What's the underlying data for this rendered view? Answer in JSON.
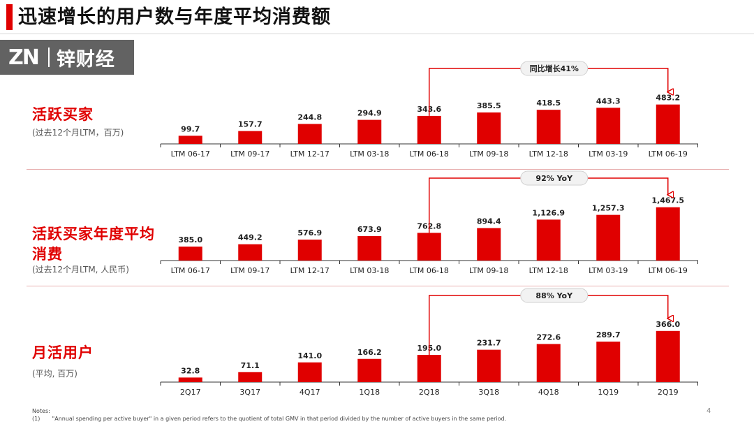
{
  "slide": {
    "title": "迅速增长的用户数与年度平均消费额",
    "watermark_logo": "ZN",
    "watermark_text": "锌财经",
    "page_number": "4",
    "notes_label": "Notes:",
    "footnote_number": "(1)",
    "footnote_text": "\"Annual spending per active buyer\" in a given period refers to the quotient of total GMV in that period divided by the number of active buyers in the same period."
  },
  "colors": {
    "bar": "#e00000",
    "accent": "#e00000",
    "axis": "#333333"
  },
  "sections": [
    {
      "title_lines": [
        "活跃买家"
      ],
      "subtitle": "(过去12个月LTM，百万)"
    },
    {
      "title_lines": [
        "活跃买家年度平均",
        "消费"
      ],
      "subtitle": "(过去12个月LTM, 人民币)"
    },
    {
      "title_lines": [
        "月活用户"
      ],
      "subtitle": "(平均, 百万)"
    }
  ],
  "chart_data": [
    {
      "type": "bar",
      "categories": [
        "LTM 06-17",
        "LTM 09-17",
        "LTM 12-17",
        "LTM 03-18",
        "LTM 06-18",
        "LTM 09-18",
        "LTM 12-18",
        "LTM 03-19",
        "LTM 06-19"
      ],
      "values": [
        99.7,
        157.7,
        244.8,
        294.9,
        343.6,
        385.5,
        418.5,
        443.3,
        483.2
      ],
      "value_labels": [
        "99.7",
        "157.7",
        "244.8",
        "294.9",
        "343.6",
        "385.5",
        "418.5",
        "443.3",
        "483.2"
      ],
      "ylim": [
        0,
        600
      ],
      "annotation": {
        "text": "同比增长41%",
        "from_category": "LTM 06-18",
        "to_category": "LTM 06-19"
      }
    },
    {
      "type": "bar",
      "categories": [
        "LTM 06-17",
        "LTM 09-17",
        "LTM 12-17",
        "LTM 03-18",
        "LTM 06-18",
        "LTM 09-18",
        "LTM 12-18",
        "LTM 03-19",
        "LTM 06-19"
      ],
      "values": [
        385.0,
        449.2,
        576.9,
        673.9,
        762.8,
        894.4,
        1126.9,
        1257.3,
        1467.5
      ],
      "value_labels": [
        "385.0",
        "449.2",
        "576.9",
        "673.9",
        "762.8",
        "894.4",
        "1,126.9",
        "1,257.3",
        "1,467.5"
      ],
      "ylim": [
        0,
        1500
      ],
      "annotation": {
        "text": "92% YoY",
        "from_category": "LTM 06-18",
        "to_category": "LTM 06-19"
      }
    },
    {
      "type": "bar",
      "categories": [
        "2Q17",
        "3Q17",
        "4Q17",
        "1Q18",
        "2Q18",
        "3Q18",
        "4Q18",
        "1Q19",
        "2Q19"
      ],
      "values": [
        32.8,
        71.1,
        141.0,
        166.2,
        195.0,
        231.7,
        272.6,
        289.7,
        366.0
      ],
      "value_labels": [
        "32.8",
        "71.1",
        "141.0",
        "166.2",
        "195.0",
        "231.7",
        "272.6",
        "289.7",
        "366.0"
      ],
      "ylim": [
        0,
        400
      ],
      "annotation": {
        "text": "88% YoY",
        "from_category": "2Q18",
        "to_category": "2Q19"
      }
    }
  ]
}
